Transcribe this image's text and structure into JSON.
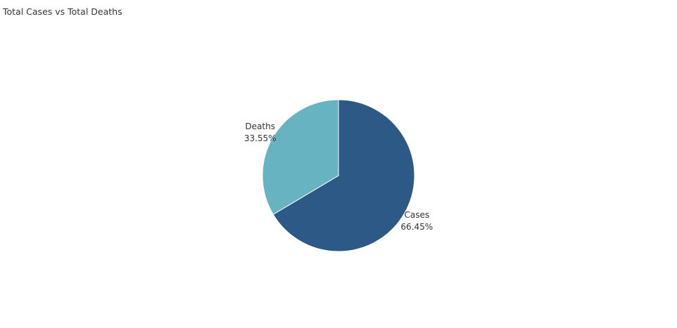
{
  "title": "Total Cases vs Total Deaths",
  "chart_data": {
    "type": "pie",
    "title": "Total Cases vs Total Deaths",
    "slices": [
      {
        "label": "Cases",
        "percent_label": "66.45%",
        "value": 66.45,
        "color": "#2c5985"
      },
      {
        "label": "Deaths",
        "percent_label": "33.55%",
        "value": 33.55,
        "color": "#67b3c2"
      }
    ],
    "legend": "none",
    "start_angle": "12 o'clock",
    "direction": "clockwise"
  }
}
